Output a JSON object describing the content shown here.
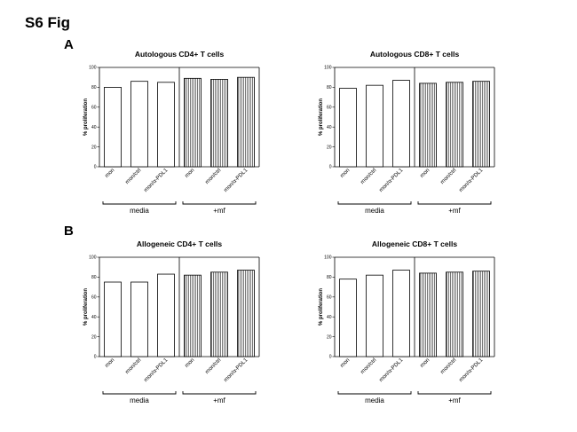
{
  "figure": {
    "title": "S6 Fig",
    "panels": [
      {
        "label": "A"
      },
      {
        "label": "B"
      }
    ]
  },
  "chart_data": [
    {
      "type": "bar",
      "title": "Autologous CD4+ T cells",
      "ylabel": "% proliferation",
      "ylim": [
        0,
        100
      ],
      "yticks": [
        0,
        20,
        40,
        60,
        80,
        100
      ],
      "categories": [
        "mon",
        "mon/ctrl",
        "mon/α-PDL1",
        "mon",
        "mon/ctrl",
        "mon/α-PDL1"
      ],
      "values": [
        80,
        86,
        85,
        89,
        88,
        90
      ],
      "groups": [
        {
          "label": "media"
        },
        {
          "label": "+mf"
        }
      ]
    },
    {
      "type": "bar",
      "title": "Autologous CD8+ T cells",
      "ylabel": "% proliferation",
      "ylim": [
        0,
        100
      ],
      "yticks": [
        0,
        20,
        40,
        60,
        80,
        100
      ],
      "categories": [
        "mon",
        "mon/ctrl",
        "mon/α-PDL1",
        "mon",
        "mon/ctrl",
        "mon/α-PDL1"
      ],
      "values": [
        79,
        82,
        87,
        84,
        85,
        86
      ],
      "groups": [
        {
          "label": "media"
        },
        {
          "label": "+mf"
        }
      ]
    },
    {
      "type": "bar",
      "title": "Allogeneic CD4+ T cells",
      "ylabel": "% proliferation",
      "ylim": [
        0,
        100
      ],
      "yticks": [
        0,
        20,
        40,
        60,
        80,
        100
      ],
      "categories": [
        "mon",
        "mon/ctrl",
        "mon/α-PDL1",
        "mon",
        "mon/ctrl",
        "mon/α-PDL1"
      ],
      "values": [
        75,
        75,
        83,
        82,
        85,
        87
      ],
      "groups": [
        {
          "label": "media"
        },
        {
          "label": "+mf"
        }
      ]
    },
    {
      "type": "bar",
      "title": "Allogeneic CD8+ T cells",
      "ylabel": "% proliferation",
      "ylim": [
        0,
        100
      ],
      "yticks": [
        0,
        20,
        40,
        60,
        80,
        100
      ],
      "categories": [
        "mon",
        "mon/ctrl",
        "mon/α-PDL1",
        "mon",
        "mon/ctrl",
        "mon/α-PDL1"
      ],
      "values": [
        78,
        82,
        87,
        84,
        85,
        86
      ],
      "groups": [
        {
          "label": "media"
        },
        {
          "label": "+mf"
        }
      ]
    }
  ]
}
